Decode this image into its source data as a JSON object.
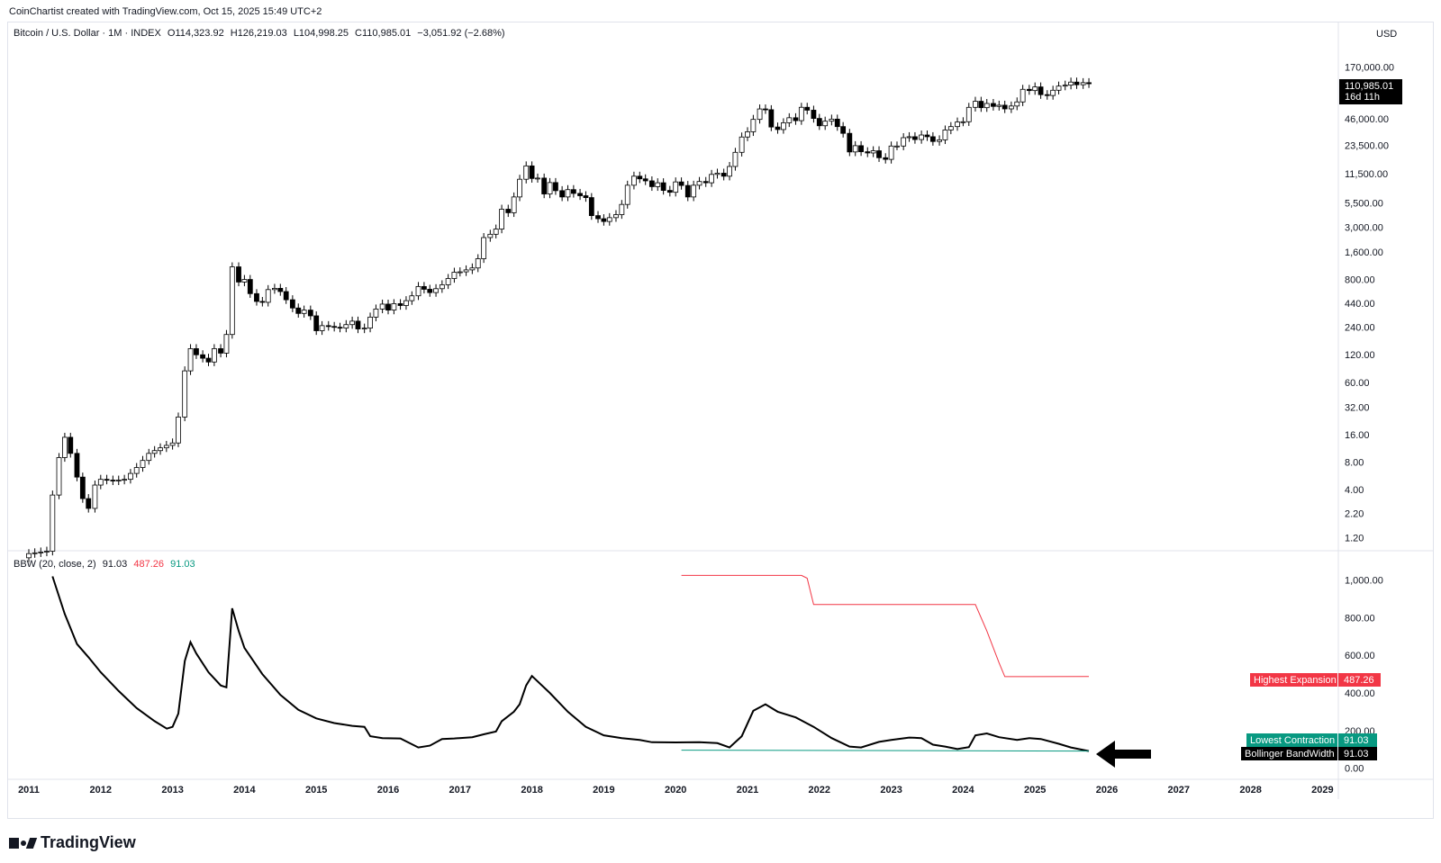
{
  "header": {
    "credit": "CoinChartist created with TradingView.com, Oct 15, 2025 15:49 UTC+2"
  },
  "main_legend": {
    "symbol": "Bitcoin / U.S. Dollar · 1M · INDEX",
    "open": "O114,323.92",
    "high": "H126,219.03",
    "low": "L104,998.25",
    "close": "C110,985.01",
    "change": "−3,051.92 (−2.68%)"
  },
  "currency": "USD",
  "price_tag": {
    "price": "110,985.01",
    "countdown": "16d 11h",
    "color": "#000000"
  },
  "indicator_legend": {
    "name": "BBW (20, close, 2)",
    "value": "91.03",
    "highest": "487.26",
    "lowest": "91.03",
    "highest_color": "#f23645",
    "lowest_color": "#089981"
  },
  "indicator_tags": {
    "highest_label": "Highest Expansion",
    "highest_value": "487.26",
    "lowest_label": "Lowest Contraction",
    "lowest_value": "91.03",
    "bbw_label": "Bollinger BandWidth",
    "bbw_value": "91.03"
  },
  "logo": {
    "text": "TradingView",
    "icon": "tradingview-logo-icon"
  },
  "chart_data": [
    {
      "type": "candlestick",
      "title": "Bitcoin / U.S. Dollar · 1M · INDEX",
      "x_ticks": [
        "2011",
        "2012",
        "2013",
        "2014",
        "2015",
        "2016",
        "2017",
        "2018",
        "2019",
        "2020",
        "2021",
        "2022",
        "2023",
        "2024",
        "2025",
        "2026",
        "2027",
        "2028",
        "2029"
      ],
      "x_range": [
        2010.95,
        2029.5
      ],
      "y_scale": "log",
      "y_ticks": [
        "170,000.00",
        "46,000.00",
        "23,500.00",
        "11,500.00",
        "5,500.00",
        "3,000.00",
        "1,600.00",
        "800.00",
        "440.00",
        "240.00",
        "120.00",
        "60.00",
        "32.00",
        "16.00",
        "8.00",
        "4.00",
        "2.20",
        "1.20"
      ],
      "y_tick_values": [
        170000,
        46000,
        23500,
        11500,
        5500,
        3000,
        1600,
        800,
        440,
        240,
        120,
        60,
        32,
        16,
        8,
        4,
        2.2,
        1.2
      ],
      "y_range": [
        0.9,
        330000
      ],
      "up_color": "#ffffff",
      "down_color": "#000000",
      "series_close": [
        [
          2011.0,
          0.8
        ],
        [
          2011.25,
          0.85
        ],
        [
          2011.33,
          3.5
        ],
        [
          2011.42,
          9
        ],
        [
          2011.5,
          15
        ],
        [
          2011.58,
          10
        ],
        [
          2011.67,
          5.5
        ],
        [
          2011.75,
          3.2
        ],
        [
          2011.83,
          2.5
        ],
        [
          2011.92,
          4.5
        ],
        [
          2012.0,
          5.2
        ],
        [
          2012.17,
          5.0
        ],
        [
          2012.33,
          5.2
        ],
        [
          2012.5,
          7.0
        ],
        [
          2012.67,
          10
        ],
        [
          2012.83,
          11.5
        ],
        [
          2013.0,
          13
        ],
        [
          2013.08,
          25
        ],
        [
          2013.17,
          80
        ],
        [
          2013.25,
          140
        ],
        [
          2013.33,
          120
        ],
        [
          2013.42,
          110
        ],
        [
          2013.5,
          100
        ],
        [
          2013.58,
          140
        ],
        [
          2013.67,
          125
        ],
        [
          2013.75,
          200
        ],
        [
          2013.83,
          1100
        ],
        [
          2013.92,
          750
        ],
        [
          2014.0,
          800
        ],
        [
          2014.08,
          560
        ],
        [
          2014.17,
          460
        ],
        [
          2014.25,
          450
        ],
        [
          2014.33,
          620
        ],
        [
          2014.42,
          640
        ],
        [
          2014.5,
          590
        ],
        [
          2014.58,
          480
        ],
        [
          2014.67,
          390
        ],
        [
          2014.75,
          340
        ],
        [
          2014.83,
          370
        ],
        [
          2014.92,
          320
        ],
        [
          2015.0,
          220
        ],
        [
          2015.08,
          250
        ],
        [
          2015.17,
          245
        ],
        [
          2015.33,
          235
        ],
        [
          2015.5,
          280
        ],
        [
          2015.58,
          230
        ],
        [
          2015.67,
          235
        ],
        [
          2015.75,
          310
        ],
        [
          2015.83,
          380
        ],
        [
          2015.92,
          430
        ],
        [
          2016.0,
          370
        ],
        [
          2016.08,
          435
        ],
        [
          2016.17,
          415
        ],
        [
          2016.33,
          530
        ],
        [
          2016.42,
          670
        ],
        [
          2016.5,
          625
        ],
        [
          2016.58,
          575
        ],
        [
          2016.75,
          700
        ],
        [
          2016.92,
          960
        ],
        [
          2017.0,
          970
        ],
        [
          2017.17,
          1070
        ],
        [
          2017.25,
          1350
        ],
        [
          2017.33,
          2300
        ],
        [
          2017.42,
          2500
        ],
        [
          2017.5,
          2850
        ],
        [
          2017.58,
          4700
        ],
        [
          2017.67,
          4300
        ],
        [
          2017.75,
          6400
        ],
        [
          2017.83,
          10000
        ],
        [
          2017.92,
          14000
        ],
        [
          2018.0,
          10200
        ],
        [
          2018.08,
          10300
        ],
        [
          2018.17,
          6900
        ],
        [
          2018.25,
          9200
        ],
        [
          2018.33,
          7500
        ],
        [
          2018.42,
          6400
        ],
        [
          2018.5,
          7700
        ],
        [
          2018.58,
          7000
        ],
        [
          2018.67,
          6600
        ],
        [
          2018.75,
          6300
        ],
        [
          2018.83,
          4000
        ],
        [
          2018.92,
          3700
        ],
        [
          2019.0,
          3450
        ],
        [
          2019.08,
          3800
        ],
        [
          2019.17,
          4100
        ],
        [
          2019.25,
          5300
        ],
        [
          2019.33,
          8600
        ],
        [
          2019.42,
          10800
        ],
        [
          2019.5,
          10100
        ],
        [
          2019.58,
          9600
        ],
        [
          2019.67,
          8300
        ],
        [
          2019.75,
          9150
        ],
        [
          2019.83,
          7550
        ],
        [
          2019.92,
          7200
        ],
        [
          2020.0,
          9350
        ],
        [
          2020.08,
          8550
        ],
        [
          2020.17,
          6400
        ],
        [
          2020.25,
          8600
        ],
        [
          2020.33,
          9450
        ],
        [
          2020.42,
          9150
        ],
        [
          2020.5,
          11300
        ],
        [
          2020.58,
          11650
        ],
        [
          2020.67,
          10800
        ],
        [
          2020.75,
          13800
        ],
        [
          2020.83,
          19700
        ],
        [
          2020.92,
          29000
        ],
        [
          2021.0,
          33100
        ],
        [
          2021.08,
          45200
        ],
        [
          2021.17,
          58800
        ],
        [
          2021.25,
          57700
        ],
        [
          2021.33,
          37300
        ],
        [
          2021.42,
          35000
        ],
        [
          2021.5,
          41500
        ],
        [
          2021.58,
          47100
        ],
        [
          2021.67,
          43800
        ],
        [
          2021.75,
          61300
        ],
        [
          2021.83,
          57000
        ],
        [
          2021.92,
          46300
        ],
        [
          2022.0,
          38500
        ],
        [
          2022.08,
          43200
        ],
        [
          2022.17,
          45500
        ],
        [
          2022.25,
          37700
        ],
        [
          2022.33,
          31800
        ],
        [
          2022.42,
          19900
        ],
        [
          2022.5,
          23300
        ],
        [
          2022.58,
          20000
        ],
        [
          2022.67,
          19400
        ],
        [
          2022.75,
          20500
        ],
        [
          2022.83,
          17200
        ],
        [
          2022.92,
          16500
        ],
        [
          2023.0,
          23100
        ],
        [
          2023.08,
          23100
        ],
        [
          2023.17,
          28500
        ],
        [
          2023.25,
          29200
        ],
        [
          2023.33,
          27200
        ],
        [
          2023.42,
          30500
        ],
        [
          2023.5,
          29200
        ],
        [
          2023.58,
          25900
        ],
        [
          2023.67,
          27000
        ],
        [
          2023.75,
          34600
        ],
        [
          2023.83,
          37700
        ],
        [
          2023.92,
          42300
        ],
        [
          2024.0,
          42600
        ],
        [
          2024.08,
          61200
        ],
        [
          2024.17,
          71300
        ],
        [
          2024.25,
          60700
        ],
        [
          2024.33,
          67500
        ],
        [
          2024.42,
          62700
        ],
        [
          2024.5,
          64600
        ],
        [
          2024.58,
          58900
        ],
        [
          2024.67,
          63300
        ],
        [
          2024.75,
          70200
        ],
        [
          2024.83,
          96400
        ],
        [
          2024.92,
          93400
        ],
        [
          2025.0,
          102400
        ],
        [
          2025.08,
          84300
        ],
        [
          2025.17,
          82500
        ],
        [
          2025.25,
          94200
        ],
        [
          2025.33,
          104600
        ],
        [
          2025.42,
          107100
        ],
        [
          2025.5,
          115700
        ],
        [
          2025.58,
          108200
        ],
        [
          2025.67,
          114000
        ],
        [
          2025.75,
          110985
        ]
      ]
    },
    {
      "type": "line",
      "title": "BBW (20, close, 2)",
      "y_ticks": [
        "1,000.00",
        "800.00",
        "600.00",
        "400.00",
        "200.00",
        "0.00"
      ],
      "y_tick_values": [
        1000,
        800,
        600,
        400,
        200,
        0
      ],
      "y_range": [
        -40,
        1070
      ],
      "series": [
        {
          "name": "BBW",
          "color": "#000000",
          "points": [
            [
              2011.33,
              1020
            ],
            [
              2011.5,
              820
            ],
            [
              2011.67,
              660
            ],
            [
              2011.83,
              590
            ],
            [
              2012.0,
              510
            ],
            [
              2012.25,
              410
            ],
            [
              2012.5,
              320
            ],
            [
              2012.75,
              250
            ],
            [
              2012.92,
              210
            ],
            [
              2013.0,
              220
            ],
            [
              2013.08,
              290
            ],
            [
              2013.17,
              570
            ],
            [
              2013.25,
              670
            ],
            [
              2013.33,
              610
            ],
            [
              2013.5,
              510
            ],
            [
              2013.67,
              440
            ],
            [
              2013.75,
              430
            ],
            [
              2013.83,
              850
            ],
            [
              2013.92,
              730
            ],
            [
              2014.0,
              640
            ],
            [
              2014.25,
              500
            ],
            [
              2014.5,
              390
            ],
            [
              2014.75,
              310
            ],
            [
              2015.0,
              265
            ],
            [
              2015.25,
              240
            ],
            [
              2015.5,
              225
            ],
            [
              2015.67,
              220
            ],
            [
              2015.75,
              170
            ],
            [
              2015.92,
              160
            ],
            [
              2016.17,
              158
            ],
            [
              2016.42,
              110
            ],
            [
              2016.58,
              120
            ],
            [
              2016.75,
              155
            ],
            [
              2016.92,
              158
            ],
            [
              2017.17,
              165
            ],
            [
              2017.33,
              180
            ],
            [
              2017.5,
              195
            ],
            [
              2017.58,
              250
            ],
            [
              2017.75,
              300
            ],
            [
              2017.83,
              340
            ],
            [
              2017.92,
              440
            ],
            [
              2018.0,
              490
            ],
            [
              2018.25,
              400
            ],
            [
              2018.5,
              300
            ],
            [
              2018.75,
              220
            ],
            [
              2019.0,
              175
            ],
            [
              2019.25,
              160
            ],
            [
              2019.5,
              150
            ],
            [
              2019.67,
              138
            ],
            [
              2020.0,
              137
            ],
            [
              2020.33,
              138
            ],
            [
              2020.58,
              133
            ],
            [
              2020.75,
              110
            ],
            [
              2020.92,
              170
            ],
            [
              2021.08,
              305
            ],
            [
              2021.25,
              340
            ],
            [
              2021.42,
              300
            ],
            [
              2021.67,
              270
            ],
            [
              2021.92,
              220
            ],
            [
              2022.17,
              160
            ],
            [
              2022.42,
              115
            ],
            [
              2022.58,
              110
            ],
            [
              2022.83,
              140
            ],
            [
              2023.0,
              150
            ],
            [
              2023.25,
              163
            ],
            [
              2023.42,
              160
            ],
            [
              2023.58,
              125
            ],
            [
              2023.75,
              115
            ],
            [
              2023.92,
              102
            ],
            [
              2024.08,
              112
            ],
            [
              2024.17,
              175
            ],
            [
              2024.33,
              185
            ],
            [
              2024.5,
              165
            ],
            [
              2024.75,
              150
            ],
            [
              2024.92,
              160
            ],
            [
              2025.08,
              155
            ],
            [
              2025.33,
              130
            ],
            [
              2025.5,
              110
            ],
            [
              2025.75,
              91.03
            ]
          ]
        },
        {
          "name": "Highest Expansion",
          "color": "#f23645",
          "points": [
            [
              2020.08,
              1025
            ],
            [
              2021.75,
              1025
            ],
            [
              2021.83,
              1010
            ],
            [
              2021.92,
              870
            ],
            [
              2024.17,
              870
            ],
            [
              2024.33,
              730
            ],
            [
              2024.5,
              560
            ],
            [
              2024.58,
              487
            ],
            [
              2025.75,
              487.26
            ]
          ]
        },
        {
          "name": "Lowest Contraction",
          "color": "#089981",
          "points": [
            [
              2020.08,
              96
            ],
            [
              2025.75,
              91.03
            ]
          ]
        }
      ]
    }
  ],
  "annotations": {
    "arrow": "black-left-arrow",
    "arrow_color": "#000000"
  }
}
